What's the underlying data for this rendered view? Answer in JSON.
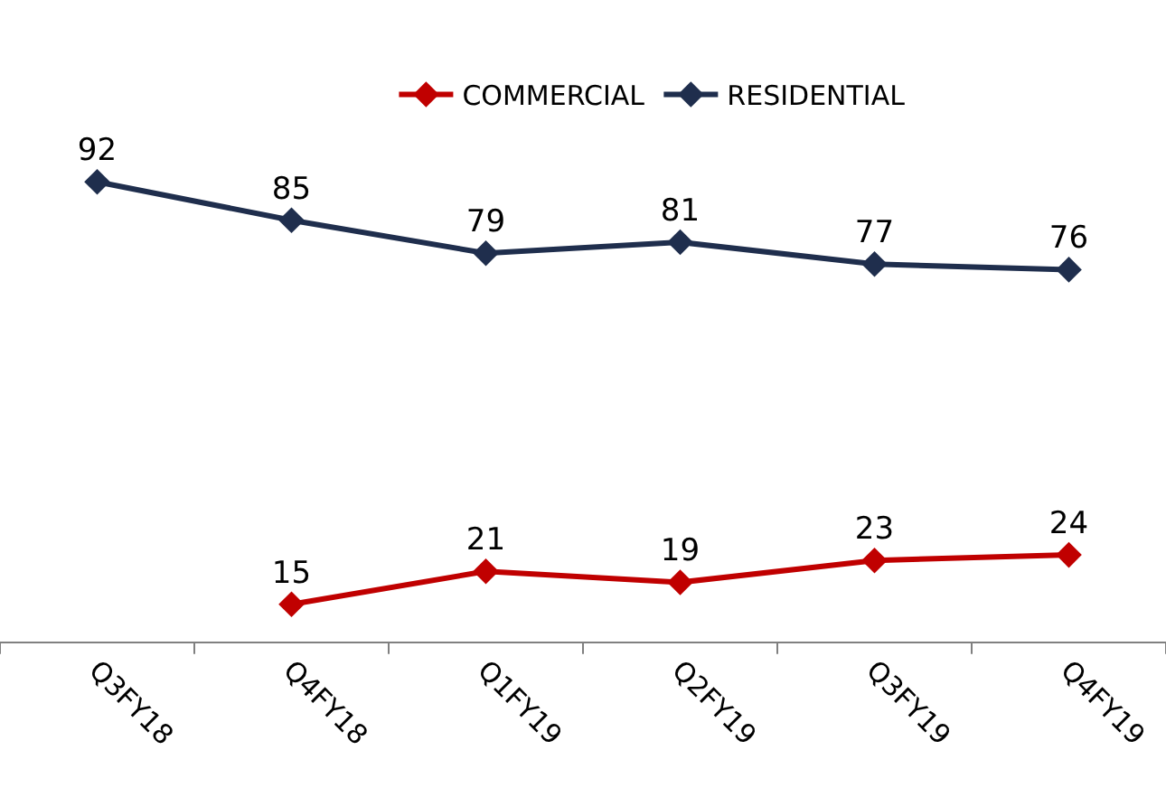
{
  "chart_data": {
    "type": "line",
    "categories": [
      "Q3FY18",
      "Q4FY18",
      "Q1FY19",
      "Q2FY19",
      "Q3FY19",
      "Q4FY19"
    ],
    "series": [
      {
        "name": "COMMERCIAL",
        "color": "#c00000",
        "values": [
          null,
          15,
          21,
          19,
          23,
          24
        ]
      },
      {
        "name": "RESIDENTIAL",
        "color": "#1f2e4d",
        "values": [
          92,
          85,
          79,
          81,
          77,
          76
        ]
      }
    ],
    "tick_labels": "x",
    "data_labels": true,
    "marker": "diamond",
    "line_style": "solid",
    "legend": "top"
  }
}
